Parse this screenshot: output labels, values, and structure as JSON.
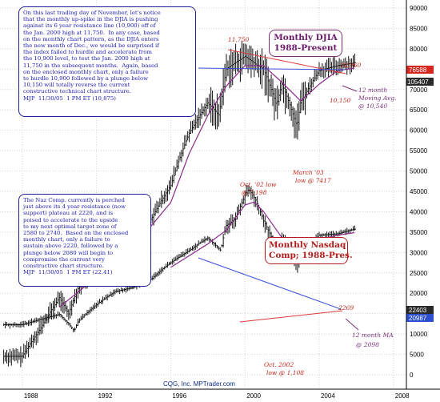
{
  "chart_data": [
    {
      "type": "bar",
      "title": "Monthly DJIA 1988-Present",
      "series": [
        {
          "name": "DJIA",
          "style": "OHLC monthly bars",
          "x": [
            1988,
            1989,
            1990,
            1990.5,
            1991,
            1992,
            1993,
            1994,
            1995,
            1996,
            1997,
            1998,
            1998.6,
            1999,
            2000,
            2000.7,
            2001,
            2001.7,
            2002,
            2002.8,
            2003,
            2004,
            2005,
            2005.9
          ],
          "values": [
            1950,
            2300,
            2750,
            2500,
            2900,
            3250,
            3550,
            3800,
            4400,
            5300,
            7200,
            8600,
            8000,
            10500,
            11300,
            10700,
            10500,
            8500,
            9600,
            7500,
            8600,
            10400,
            10700,
            10875
          ]
        },
        {
          "name": "12 month Moving Avg.",
          "style": "line",
          "x": [
            1990,
            1992,
            1994,
            1996,
            1997,
            1998,
            1999,
            2000,
            2001,
            2002,
            2003,
            2004,
            2005,
            2005.9
          ],
          "values": [
            2600,
            3100,
            3700,
            4800,
            6400,
            8000,
            9500,
            10700,
            10700,
            9700,
            8700,
            9600,
            10400,
            10540
          ]
        }
      ],
      "annotations": [
        "11,750",
        "10,960",
        "10,150",
        "March '03 low @ 7417",
        "12 month Moving Avg. @ 10,540"
      ],
      "right_axis_ticks": [
        90000,
        85000,
        80000,
        75000,
        70000,
        65000,
        60000,
        55000,
        50000,
        45000,
        40000,
        35000,
        30000,
        25000,
        20000,
        15000,
        10000,
        5000,
        0
      ],
      "price_tags": [
        "76588",
        "105407"
      ]
    },
    {
      "type": "bar",
      "title": "Monthly Nasdaq Comp; 1988-Pres.",
      "series": [
        {
          "name": "Nasdaq",
          "style": "OHLC monthly bars",
          "x": [
            1988,
            1990,
            1990.8,
            1991,
            1993,
            1994,
            1995,
            1996,
            1997,
            1998,
            1998.7,
            1999,
            1999.5,
            2000.2,
            2000.6,
            2001,
            2001.7,
            2002,
            2002.8,
            2003,
            2004,
            2005,
            2005.9
          ],
          "values": [
            380,
            460,
            340,
            400,
            700,
            760,
            900,
            1200,
            1500,
            1900,
            1500,
            2400,
            2700,
            4700,
            3800,
            2600,
            1500,
            1900,
            1150,
            1400,
            2000,
            2050,
            2241
          ]
        },
        {
          "name": "12 month MA",
          "style": "line",
          "x": [
            1996,
            1998,
            1999,
            2000,
            2000.5,
            2001,
            2002,
            2003,
            2004,
            2005,
            2005.9
          ],
          "values": [
            1100,
            1700,
            2200,
            3500,
            3700,
            3100,
            1900,
            1500,
            1850,
            2000,
            2098
          ]
        }
      ],
      "annotations": [
        "Oct. '02 low @ 7,198",
        "2269",
        "12 month MA @ 2098",
        "Oct. 2002 low @ 1,108"
      ],
      "price_tags": [
        "22403",
        "20987"
      ]
    }
  ],
  "x_axis_ticks": [
    "1988",
    "1992",
    "1996",
    "2000",
    "2004",
    "2008"
  ],
  "notes": {
    "djia": "On this last trading day of November, let's notice\nthat the monthly up-spike in the DJIA is pushing\nagainst its 6 year resistance line (10,900) off of\nthe Jan. 2000 high at 11,750.  In any case, based\non the monthly chart pattern, as the DJIA enters\nthe new month of Dec., we would be surprised if\nthe index failed to hurdle and accelerate from\nthe 10,900 level, to test the Jan. 2000 high at\n11,750 in the subsequent months.  Again, based\non the enclosed monthly chart, only a failure\nto hurdle 10,900 followed by a plunge below\n10,150 will totally reverse the current\nconstructive technical chart structure.\nMJP  11/30/05  1 PM ET (10,875)",
    "nasdaq": "The Naz Comp. currently is perched\njust above its 4 year resistance (now\nsupport) plateau at 2220, and is\npoised to accelerate to the upside\nto my next optimal target zone of\n2580 to 2740.  Based on the enclosed\nmonthly chart, only a failure to\nsustain above 2220, followed by a\nplunge below 2080 will begin to\ncompromise the current very\nconstructive chart structure.\nMJP  11/30/05  1 PM ET (22.41)"
  },
  "titles": {
    "djia": "Monthly DJIA\n1988-Present",
    "nasdaq": "Monthly Nasdaq\nComp; 1988-Pres."
  },
  "labels": {
    "djia_high": "11,750",
    "djia_res": "10,960",
    "djia_support": "10,150",
    "djia_ma1": "12 month",
    "djia_ma2": "Moving Avg.",
    "djia_ma3": "@ 10,540",
    "djia_low1": "March '03",
    "djia_low2": "low @ 7417",
    "naz_label1": "Oct. '02 low",
    "naz_label2": "@ 7,198",
    "naz_res": "2269",
    "naz_ma1": "12 month MA",
    "naz_ma2": "@ 2098",
    "naz_low1": "Oct. 2002",
    "naz_low2": "low @ 1,108"
  },
  "footer": "CQG, Inc. MPTrader.com",
  "colors": {
    "bars": "#111111",
    "djia_ma": "#8a2a8a",
    "naz_ma": "#8a2a8a",
    "trend_red": "#d93a3a",
    "trend_blue": "#3a4fd9",
    "tag_red": "#d6261e",
    "tag_dark": "#2a2a2a",
    "tag_blue": "#2c4fcf",
    "label_red": "#c0261c",
    "label_purple": "#7a2f7a"
  }
}
